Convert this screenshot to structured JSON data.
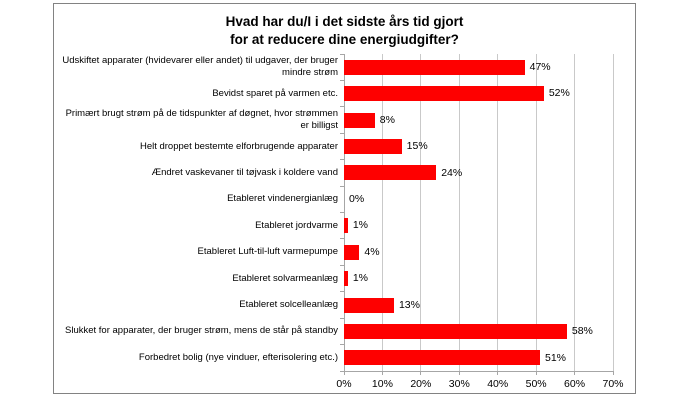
{
  "chart": {
    "title_line1": "Hvad har du/I i det sidste års tid gjort",
    "title_line2": "for at reducere dine energiudgifter?"
  },
  "chart_data": {
    "type": "bar",
    "orientation": "horizontal",
    "title": "Hvad har du/I i det sidste års tid gjort for at reducere dine energiudgifter?",
    "categories": [
      "Udskiftet apparater (hvidevarer eller andet) til udgaver, der bruger mindre strøm",
      "Bevidst sparet på varmen etc.",
      "Primært brugt strøm på de tidspunkter af døgnet, hvor strømmen er billigst",
      "Helt droppet bestemte elforbrugende apparater",
      "Ændret vaskevaner til tøjvask i koldere vand",
      "Etableret vindenergianlæg",
      "Etableret jordvarme",
      "Etableret Luft-til-luft varmepumpe",
      "Etableret solvarmeanlæg",
      "Etableret solcelleanlæg",
      "Slukket for apparater, der bruger strøm, mens de står på standby",
      "Forbedret bolig (nye vinduer, efterisolering etc.)"
    ],
    "values": [
      47,
      52,
      8,
      15,
      24,
      0,
      1,
      4,
      1,
      13,
      58,
      51
    ],
    "value_labels": [
      "47%",
      "52%",
      "8%",
      "15%",
      "24%",
      "0%",
      "1%",
      "4%",
      "1%",
      "13%",
      "58%",
      "51%"
    ],
    "x_ticks": [
      "0%",
      "10%",
      "20%",
      "30%",
      "40%",
      "50%",
      "60%",
      "70%"
    ],
    "xlim": [
      0,
      70
    ],
    "xlabel": "",
    "ylabel": "",
    "grid": true,
    "legend": false,
    "bar_color": "#fe0000",
    "gridline_color": "#c9c9c9",
    "axis_color": "#a6a6a6",
    "border_color": "#828282",
    "text_color": "#000000"
  }
}
